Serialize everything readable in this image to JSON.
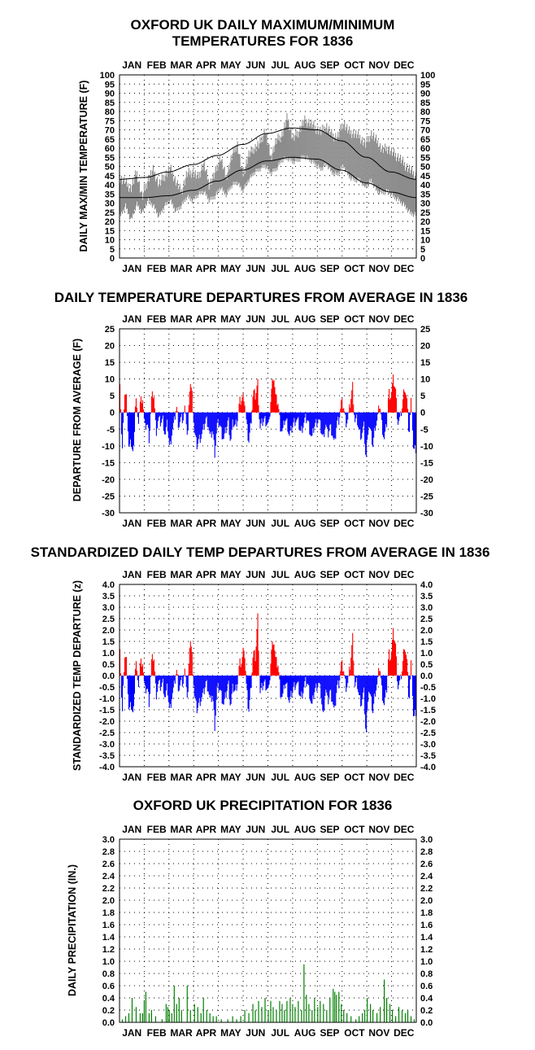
{
  "months": [
    "JAN",
    "FEB",
    "MAR",
    "APR",
    "MAY",
    "JUN",
    "JUL",
    "AUG",
    "SEP",
    "OCT",
    "NOV",
    "DEC"
  ],
  "charts": {
    "temp": {
      "title": [
        "OXFORD UK DAILY MAXIMUM/MINIMUM",
        "TEMPERATURES FOR 1836"
      ],
      "ylabel": "DAILY MAX/MIN TEMPERATURE (F)"
    },
    "dep": {
      "title": [
        "DAILY TEMPERATURE DEPARTURES FROM AVERAGE IN 1836"
      ],
      "ylabel": "DEPARTURE FROM AVERAGE (F)"
    },
    "std": {
      "title": [
        "STANDARDIZED DAILY TEMP DEPARTURES FROM AVERAGE IN 1836"
      ],
      "ylabel": "STANDARDIZED TEMP DEPARTURE (z)"
    },
    "prcp": {
      "title": [
        "OXFORD UK PRECIPITATION FOR 1836"
      ],
      "ylabel": "DAILY PRECIPITATION (IN.)"
    }
  },
  "chart_data": [
    {
      "id": "temp",
      "type": "line",
      "title": "OXFORD UK DAILY MAXIMUM/MINIMUM TEMPERATURES FOR 1836",
      "ylabel": "DAILY MAX/MIN TEMPERATURE (F)",
      "x_tick_labels": [
        "JAN",
        "FEB",
        "MAR",
        "APR",
        "MAY",
        "JUN",
        "JUL",
        "AUG",
        "SEP",
        "OCT",
        "NOV",
        "DEC"
      ],
      "ylim": [
        0,
        100
      ],
      "y_ticks": [
        0,
        5,
        10,
        15,
        20,
        25,
        30,
        35,
        40,
        45,
        50,
        55,
        60,
        65,
        70,
        75,
        80,
        85,
        90,
        95,
        100
      ],
      "y_tick_labels": [
        "0",
        "5",
        "10",
        "15",
        "20",
        "25",
        "30",
        "35",
        "40",
        "45",
        "50",
        "55",
        "60",
        "65",
        "70",
        "75",
        "80",
        "85",
        "90",
        "95",
        "100"
      ],
      "grid": "dotted",
      "colors": {
        "observed": "#8c8c8c",
        "normal": "#000000"
      },
      "series": [
        {
          "role": "observed_max_daily_approx_by_week",
          "values": [
            44,
            41,
            38,
            47,
            33,
            43,
            48,
            40,
            45,
            49,
            42,
            36,
            46,
            47,
            44,
            52,
            40,
            46,
            55,
            44,
            55,
            63,
            45,
            56,
            60,
            62,
            70,
            55,
            64,
            67,
            77,
            65,
            69,
            75,
            74,
            71,
            69,
            72,
            67,
            66,
            74,
            69,
            68,
            66,
            62,
            68,
            64,
            59,
            60,
            57,
            55,
            51,
            48,
            45
          ]
        },
        {
          "role": "observed_min_daily_approx_by_week",
          "values": [
            24,
            30,
            22,
            31,
            26,
            33,
            30,
            24,
            30,
            33,
            27,
            30,
            35,
            33,
            36,
            38,
            33,
            35,
            40,
            36,
            41,
            43,
            38,
            44,
            48,
            50,
            52,
            48,
            50,
            55,
            56,
            54,
            55,
            57,
            55,
            53,
            50,
            53,
            48,
            47,
            52,
            46,
            44,
            44,
            40,
            44,
            38,
            37,
            38,
            35,
            33,
            30,
            26,
            25
          ]
        },
        {
          "role": "normal_max",
          "x_day": [
            1,
            32,
            60,
            91,
            121,
            152,
            182,
            213,
            244,
            274,
            305,
            335,
            366
          ],
          "values": [
            43,
            44,
            47,
            51,
            56,
            62,
            68,
            71,
            70,
            64,
            55,
            47,
            43
          ]
        },
        {
          "role": "normal_min",
          "x_day": [
            1,
            32,
            60,
            91,
            121,
            152,
            182,
            213,
            244,
            274,
            305,
            335,
            366
          ],
          "values": [
            33,
            33,
            34,
            37,
            42,
            48,
            53,
            55,
            54,
            48,
            41,
            36,
            33
          ]
        }
      ]
    },
    {
      "id": "dep",
      "type": "bar",
      "title": "DAILY TEMPERATURE DEPARTURES FROM AVERAGE IN 1836",
      "ylabel": "DEPARTURE FROM AVERAGE (F)",
      "x_tick_labels": [
        "JAN",
        "FEB",
        "MAR",
        "APR",
        "MAY",
        "JUN",
        "JUL",
        "AUG",
        "SEP",
        "OCT",
        "NOV",
        "DEC"
      ],
      "ylim": [
        -30,
        25
      ],
      "y_ticks": [
        -30,
        -25,
        -20,
        -15,
        -10,
        -5,
        0,
        5,
        10,
        15,
        20,
        25
      ],
      "y_tick_labels": [
        "-30",
        "-25",
        "-20",
        "-15",
        "-10",
        "-5",
        "0",
        "5",
        "10",
        "15",
        "20",
        "25"
      ],
      "grid": "dotted",
      "colors": {
        "positive": "#ff0000",
        "negative": "#0000ff"
      },
      "values_by_day_approx": [
        10,
        -13,
        6,
        4,
        -11,
        -9,
        -13,
        6,
        -4,
        3,
        5,
        -5,
        -3,
        -8,
        4,
        6,
        -6,
        -2,
        -3,
        -2,
        -7,
        -3,
        -11,
        -6,
        -3,
        2,
        -4,
        -2,
        -2,
        2,
        -9,
        10,
        5,
        -6,
        -10,
        -8,
        -7,
        -5,
        -2,
        -3,
        -8,
        -5,
        -12,
        -4,
        -3,
        -6,
        -8,
        -5,
        -2,
        -9,
        -3,
        -4,
        -2,
        3,
        4,
        5,
        -3,
        -9,
        -3,
        6,
        5,
        9,
        -5,
        -3,
        -2,
        -3,
        -4,
        6,
        12,
        4,
        3,
        -4,
        -6,
        -2,
        -3,
        -7,
        -5,
        -3,
        -2,
        -3,
        -6,
        -4,
        -2,
        -2,
        -5,
        -8,
        -4,
        -3,
        -2,
        -5,
        -8,
        -3,
        -7,
        -4,
        -6,
        -10,
        -3,
        -2,
        3,
        2,
        -3,
        -2,
        3,
        8,
        -3,
        -2,
        -6,
        -7,
        -4,
        -15,
        -3,
        -6,
        -10,
        -4,
        -2,
        3,
        -4,
        -8,
        -4,
        6,
        5,
        10,
        7,
        -3,
        -2,
        2,
        8,
        4,
        -7,
        5,
        -12,
        -11
      ]
    },
    {
      "id": "std",
      "type": "bar",
      "title": "STANDARDIZED DAILY TEMP DEPARTURES FROM AVERAGE IN 1836",
      "ylabel": "STANDARDIZED TEMP DEPARTURE (z)",
      "x_tick_labels": [
        "JAN",
        "FEB",
        "MAR",
        "APR",
        "MAY",
        "JUN",
        "JUL",
        "AUG",
        "SEP",
        "OCT",
        "NOV",
        "DEC"
      ],
      "ylim": [
        -4.0,
        4.0
      ],
      "y_ticks": [
        -4,
        -3.5,
        -3,
        -2.5,
        -2,
        -1.5,
        -1,
        -0.5,
        0,
        0.5,
        1,
        1.5,
        2,
        2.5,
        3,
        3.5,
        4
      ],
      "y_tick_labels": [
        "-4.0",
        "-3.5",
        "-3.0",
        "-2.5",
        "-2.0",
        "-1.5",
        "-1.0",
        "-0.5",
        "0.0",
        "0.5",
        "1.0",
        "1.5",
        "2.0",
        "2.5",
        "3.0",
        "3.5",
        "4.0"
      ],
      "grid": "dotted",
      "colors": {
        "positive": "#ff0000",
        "negative": "#0000ff"
      },
      "values_by_day_approx": [
        1.4,
        -1.9,
        0.9,
        0.6,
        -1.6,
        -1.3,
        -1.8,
        0.9,
        -0.6,
        0.5,
        0.7,
        -0.7,
        -0.5,
        -1.2,
        0.6,
        0.9,
        -0.9,
        -0.3,
        -0.5,
        -0.3,
        -1.0,
        -0.5,
        -1.6,
        -0.9,
        -0.5,
        0.3,
        -0.6,
        -0.3,
        -0.3,
        0.3,
        -1.3,
        1.8,
        0.8,
        -0.9,
        -1.5,
        -1.2,
        -1.0,
        -0.8,
        -0.3,
        -0.5,
        -1.2,
        -0.8,
        -2.2,
        -0.6,
        -0.5,
        -0.9,
        -1.3,
        -0.8,
        -0.3,
        -1.4,
        -0.5,
        -0.7,
        -0.3,
        0.5,
        0.6,
        1.4,
        -0.5,
        -1.6,
        -0.5,
        1.0,
        0.8,
        2.6,
        -0.8,
        -0.5,
        -0.3,
        -0.5,
        -0.7,
        1.0,
        1.7,
        0.6,
        0.5,
        -0.7,
        -1.0,
        -0.3,
        -0.5,
        -1.2,
        -0.8,
        -0.5,
        -0.3,
        -0.5,
        -1.0,
        -0.7,
        -0.3,
        -0.3,
        -0.8,
        -1.4,
        -0.7,
        -0.5,
        -0.3,
        -0.8,
        -1.9,
        -0.5,
        -1.2,
        -0.7,
        -1.0,
        -1.7,
        -0.5,
        -0.3,
        0.5,
        0.3,
        -0.5,
        -0.3,
        0.5,
        1.7,
        -0.5,
        -0.3,
        -1.0,
        -1.2,
        -0.7,
        -2.8,
        -0.5,
        -1.0,
        -1.6,
        -0.7,
        -0.3,
        0.5,
        -0.7,
        -1.3,
        -0.7,
        1.0,
        0.8,
        1.9,
        1.4,
        -0.5,
        -0.3,
        0.3,
        1.4,
        0.7,
        -1.2,
        0.8,
        -2.0,
        -1.6
      ]
    },
    {
      "id": "prcp",
      "type": "bar",
      "title": "OXFORD UK PRECIPITATION FOR 1836",
      "ylabel": "DAILY PRECIPITATION (IN.)",
      "x_tick_labels": [
        "JAN",
        "FEB",
        "MAR",
        "APR",
        "MAY",
        "JUN",
        "JUL",
        "AUG",
        "SEP",
        "OCT",
        "NOV",
        "DEC"
      ],
      "ylim": [
        0.0,
        3.0
      ],
      "y_ticks": [
        0,
        0.2,
        0.4,
        0.6,
        0.8,
        1.0,
        1.2,
        1.4,
        1.6,
        1.8,
        2.0,
        2.2,
        2.4,
        2.6,
        2.8,
        3.0
      ],
      "y_tick_labels": [
        "0.0",
        "0.2",
        "0.4",
        "0.6",
        "0.8",
        "1.0",
        "1.2",
        "1.4",
        "1.6",
        "1.8",
        "2.0",
        "2.2",
        "2.4",
        "2.6",
        "2.8",
        "3.0"
      ],
      "grid": "dotted",
      "colors": {
        "bars": "#008000"
      },
      "rain_events_approx": [
        {
          "day": 4,
          "in": 0.05
        },
        {
          "day": 8,
          "in": 0.1
        },
        {
          "day": 12,
          "in": 0.15
        },
        {
          "day": 16,
          "in": 0.4
        },
        {
          "day": 21,
          "in": 0.25
        },
        {
          "day": 26,
          "in": 0.15
        },
        {
          "day": 29,
          "in": 0.15
        },
        {
          "day": 31,
          "in": 0.35
        },
        {
          "day": 33,
          "in": 0.5
        },
        {
          "day": 37,
          "in": 0.15
        },
        {
          "day": 40,
          "in": 0.2
        },
        {
          "day": 45,
          "in": 0.1
        },
        {
          "day": 53,
          "in": 0.05
        },
        {
          "day": 58,
          "in": 0.3
        },
        {
          "day": 60,
          "in": 0.25
        },
        {
          "day": 62,
          "in": 0.2
        },
        {
          "day": 65,
          "in": 0.15
        },
        {
          "day": 68,
          "in": 0.6
        },
        {
          "day": 71,
          "in": 0.3
        },
        {
          "day": 74,
          "in": 0.4
        },
        {
          "day": 77,
          "in": 0.2
        },
        {
          "day": 84,
          "in": 0.6
        },
        {
          "day": 88,
          "in": 0.2
        },
        {
          "day": 93,
          "in": 0.3
        },
        {
          "day": 97,
          "in": 0.25
        },
        {
          "day": 101,
          "in": 0.15
        },
        {
          "day": 104,
          "in": 0.4
        },
        {
          "day": 108,
          "in": 0.2
        },
        {
          "day": 112,
          "in": 0.15
        },
        {
          "day": 116,
          "in": 0.1
        },
        {
          "day": 120,
          "in": 0.1
        },
        {
          "day": 126,
          "in": 0.05
        },
        {
          "day": 134,
          "in": 0.05
        },
        {
          "day": 140,
          "in": 0.1
        },
        {
          "day": 145,
          "in": 0.05
        },
        {
          "day": 150,
          "in": 0.1
        },
        {
          "day": 155,
          "in": 0.2
        },
        {
          "day": 160,
          "in": 0.15
        },
        {
          "day": 165,
          "in": 0.3
        },
        {
          "day": 168,
          "in": 0.2
        },
        {
          "day": 172,
          "in": 0.35
        },
        {
          "day": 176,
          "in": 0.25
        },
        {
          "day": 180,
          "in": 0.4
        },
        {
          "day": 184,
          "in": 0.2
        },
        {
          "day": 187,
          "in": 0.35
        },
        {
          "day": 190,
          "in": 0.25
        },
        {
          "day": 194,
          "in": 0.2
        },
        {
          "day": 198,
          "in": 0.35
        },
        {
          "day": 201,
          "in": 0.3
        },
        {
          "day": 204,
          "in": 0.2
        },
        {
          "day": 207,
          "in": 0.35
        },
        {
          "day": 211,
          "in": 0.4
        },
        {
          "day": 214,
          "in": 0.3
        },
        {
          "day": 217,
          "in": 0.25
        },
        {
          "day": 221,
          "in": 0.35
        },
        {
          "day": 225,
          "in": 0.2
        },
        {
          "day": 228,
          "in": 0.95
        },
        {
          "day": 231,
          "in": 0.45
        },
        {
          "day": 234,
          "in": 0.3
        },
        {
          "day": 238,
          "in": 0.2
        },
        {
          "day": 241,
          "in": 0.4
        },
        {
          "day": 245,
          "in": 0.25
        },
        {
          "day": 248,
          "in": 0.35
        },
        {
          "day": 252,
          "in": 0.3
        },
        {
          "day": 256,
          "in": 0.2
        },
        {
          "day": 260,
          "in": 0.4
        },
        {
          "day": 264,
          "in": 0.55
        },
        {
          "day": 266,
          "in": 0.5
        },
        {
          "day": 268,
          "in": 0.45
        },
        {
          "day": 271,
          "in": 0.5
        },
        {
          "day": 274,
          "in": 0.3
        },
        {
          "day": 277,
          "in": 0.2
        },
        {
          "day": 281,
          "in": 0.15
        },
        {
          "day": 286,
          "in": 0.1
        },
        {
          "day": 292,
          "in": 0.05
        },
        {
          "day": 296,
          "in": 0.1
        },
        {
          "day": 300,
          "in": 0.15
        },
        {
          "day": 303,
          "in": 0.2
        },
        {
          "day": 306,
          "in": 0.4
        },
        {
          "day": 310,
          "in": 0.3
        },
        {
          "day": 313,
          "in": 0.2
        },
        {
          "day": 318,
          "in": 0.15
        },
        {
          "day": 322,
          "in": 0.25
        },
        {
          "day": 327,
          "in": 0.7
        },
        {
          "day": 330,
          "in": 0.4
        },
        {
          "day": 334,
          "in": 0.3
        },
        {
          "day": 337,
          "in": 0.2
        },
        {
          "day": 341,
          "in": 0.1
        },
        {
          "day": 345,
          "in": 0.25
        },
        {
          "day": 349,
          "in": 0.2
        },
        {
          "day": 353,
          "in": 0.15
        },
        {
          "day": 356,
          "in": 0.2
        },
        {
          "day": 360,
          "in": 0.1
        },
        {
          "day": 364,
          "in": 0.05
        }
      ]
    }
  ]
}
